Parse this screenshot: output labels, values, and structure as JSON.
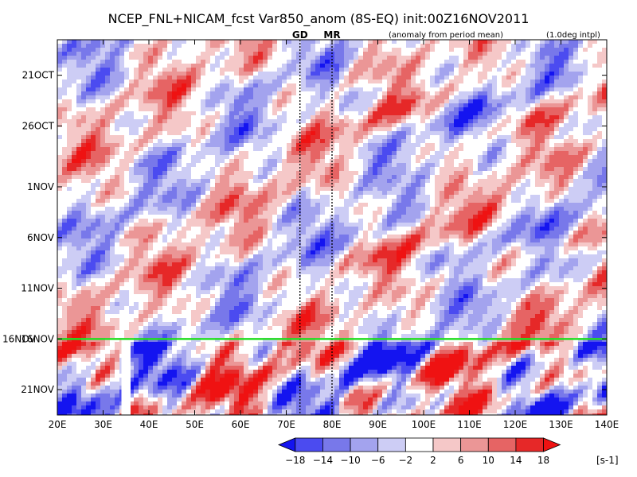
{
  "chart_data": {
    "type": "heatmap",
    "title": "NCEP_FNL+NICAM_fcst Var850_anom (8S-EQ) init:00Z16NOV2011",
    "subtitle_left": "(anomaly from period mean)",
    "subtitle_right": "(1.0deg intpl)",
    "xlabel": "",
    "ylabel": "",
    "x_ticks": [
      "20E",
      "30E",
      "40E",
      "50E",
      "60E",
      "70E",
      "80E",
      "90E",
      "100E",
      "110E",
      "120E",
      "130E",
      "140E"
    ],
    "x_tick_values": [
      20,
      30,
      40,
      50,
      60,
      70,
      80,
      90,
      100,
      110,
      120,
      130,
      140
    ],
    "xlim": [
      20,
      140
    ],
    "y_ticks": [
      "21OCT",
      "26OCT",
      "1NOV",
      "6NOV",
      "11NOV",
      "16NOV",
      "21NOV"
    ],
    "y_tick_values": [
      0,
      5,
      11,
      16,
      21,
      26,
      31
    ],
    "ylim": [
      -3.5,
      33.5
    ],
    "y_direction": "time increases downward",
    "reference_lines": [
      {
        "label": "GD",
        "x": 73,
        "style": "dotted",
        "color": "#000000"
      },
      {
        "label": "MR",
        "x": 80,
        "style": "dotted",
        "color": "#000000"
      }
    ],
    "init_line": {
      "label": "16NOV",
      "y": 26,
      "color": "#22dd22"
    },
    "missing_column_x": [
      34,
      36
    ],
    "colorbar": {
      "levels": [
        -18,
        -14,
        -10,
        -6,
        -2,
        2,
        6,
        10,
        14,
        18
      ],
      "colors": [
        "#1414f0",
        "#4b4bf0",
        "#7878ea",
        "#a3a3ee",
        "#cdcdf5",
        "#ffffff",
        "#f5c8c8",
        "#eb9696",
        "#e66464",
        "#e62828",
        "#ef1212"
      ],
      "unit": "[s-1]"
    },
    "label_colors": {
      "ref_label": "#e02020",
      "init_label": "#22aa22"
    }
  }
}
